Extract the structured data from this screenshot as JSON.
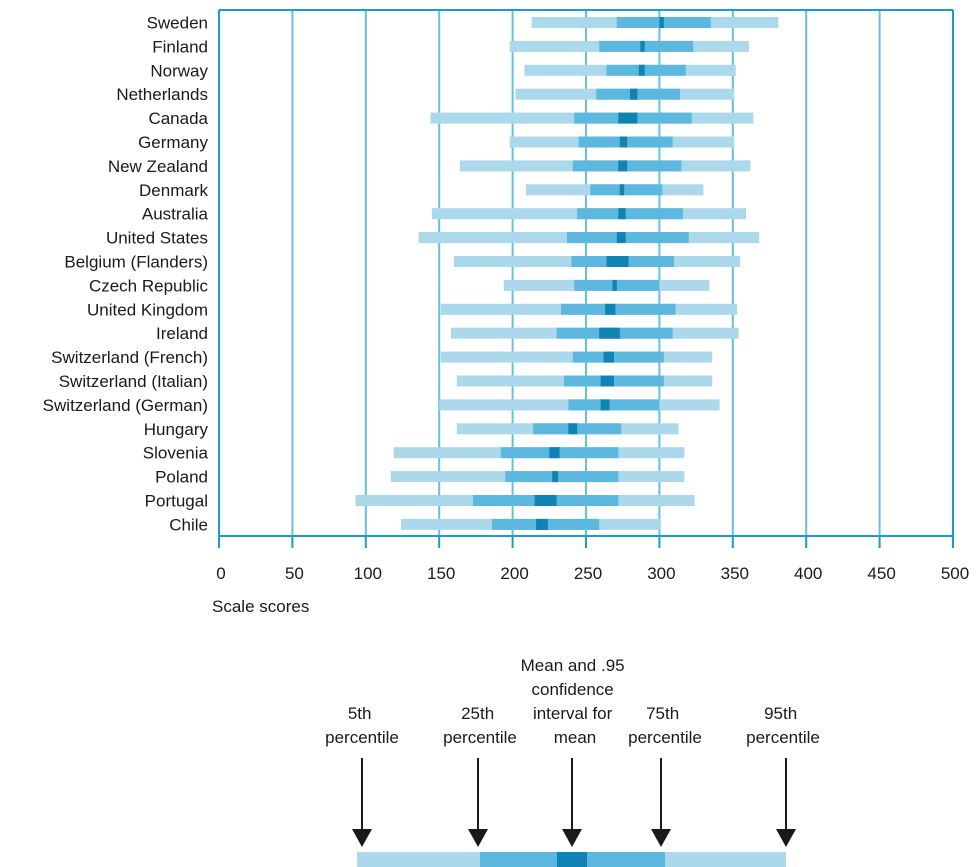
{
  "chart_data": {
    "type": "range-bar",
    "xlabel": "Scale scores",
    "xlim": [
      0,
      500
    ],
    "xticks": [
      "0",
      "50",
      "100",
      "150",
      "200",
      "250",
      "300",
      "350",
      "400",
      "450",
      "500"
    ],
    "grid": true,
    "colors": {
      "outer": "#abd8ea",
      "inner": "#5db8df",
      "mean": "#0f83b4",
      "axis": "#1a9ccc",
      "grid": "#66c0e0"
    },
    "countries": [
      {
        "name": "Sweden",
        "p5": 213,
        "p25": 271,
        "ci_low": 300,
        "ci_high": 303,
        "p75": 335,
        "p95": 381
      },
      {
        "name": "Finland",
        "p5": 198,
        "p25": 259,
        "ci_low": 287,
        "ci_high": 290,
        "p75": 323,
        "p95": 361
      },
      {
        "name": "Norway",
        "p5": 208,
        "p25": 264,
        "ci_low": 286,
        "ci_high": 290,
        "p75": 318,
        "p95": 352
      },
      {
        "name": "Netherlands",
        "p5": 202,
        "p25": 257,
        "ci_low": 280,
        "ci_high": 285,
        "p75": 314,
        "p95": 351
      },
      {
        "name": "Canada",
        "p5": 144,
        "p25": 242,
        "ci_low": 272,
        "ci_high": 285,
        "p75": 322,
        "p95": 364
      },
      {
        "name": "Germany",
        "p5": 198,
        "p25": 245,
        "ci_low": 273,
        "ci_high": 278,
        "p75": 309,
        "p95": 351
      },
      {
        "name": "New Zealand",
        "p5": 164,
        "p25": 241,
        "ci_low": 272,
        "ci_high": 278,
        "p75": 315,
        "p95": 362
      },
      {
        "name": "Denmark",
        "p5": 209,
        "p25": 253,
        "ci_low": 273,
        "ci_high": 276,
        "p75": 302,
        "p95": 330
      },
      {
        "name": "Australia",
        "p5": 145,
        "p25": 244,
        "ci_low": 272,
        "ci_high": 277,
        "p75": 316,
        "p95": 359
      },
      {
        "name": "United States",
        "p5": 136,
        "p25": 237,
        "ci_low": 271,
        "ci_high": 277,
        "p75": 320,
        "p95": 368
      },
      {
        "name": "Belgium (Flanders)",
        "p5": 160,
        "p25": 240,
        "ci_low": 264,
        "ci_high": 279,
        "p75": 310,
        "p95": 355
      },
      {
        "name": "Czech Republic",
        "p5": 194,
        "p25": 242,
        "ci_low": 268,
        "ci_high": 271,
        "p75": 300,
        "p95": 334
      },
      {
        "name": "United Kingdom",
        "p5": 151,
        "p25": 233,
        "ci_low": 263,
        "ci_high": 270,
        "p75": 311,
        "p95": 353
      },
      {
        "name": "Ireland",
        "p5": 158,
        "p25": 230,
        "ci_low": 259,
        "ci_high": 273,
        "p75": 309,
        "p95": 354
      },
      {
        "name": "Switzerland (French)",
        "p5": 151,
        "p25": 241,
        "ci_low": 262,
        "ci_high": 269,
        "p75": 303,
        "p95": 336
      },
      {
        "name": "Switzerland (Italian)",
        "p5": 162,
        "p25": 235,
        "ci_low": 260,
        "ci_high": 269,
        "p75": 303,
        "p95": 336
      },
      {
        "name": "Switzerland (German)",
        "p5": 150,
        "p25": 238,
        "ci_low": 260,
        "ci_high": 266,
        "p75": 300,
        "p95": 341
      },
      {
        "name": "Hungary",
        "p5": 162,
        "p25": 214,
        "ci_low": 238,
        "ci_high": 244,
        "p75": 274,
        "p95": 313
      },
      {
        "name": "Slovenia",
        "p5": 119,
        "p25": 192,
        "ci_low": 225,
        "ci_high": 232,
        "p75": 272,
        "p95": 317
      },
      {
        "name": "Poland",
        "p5": 117,
        "p25": 195,
        "ci_low": 227,
        "ci_high": 231,
        "p75": 272,
        "p95": 317
      },
      {
        "name": "Portugal",
        "p5": 93,
        "p25": 173,
        "ci_low": 215,
        "ci_high": 230,
        "p75": 272,
        "p95": 324
      },
      {
        "name": "Chile",
        "p5": 124,
        "p25": 186,
        "ci_low": 216,
        "ci_high": 224,
        "p75": 259,
        "p95": 301
      }
    ]
  },
  "legend": {
    "mean": [
      "Mean and .95",
      "confidence",
      "interval for",
      "mean"
    ],
    "p5": [
      "5th",
      "percentile"
    ],
    "p25": [
      "25th",
      "percentile"
    ],
    "p75": [
      "75th",
      "percentile"
    ],
    "p95": [
      "95th",
      "percentile"
    ]
  }
}
